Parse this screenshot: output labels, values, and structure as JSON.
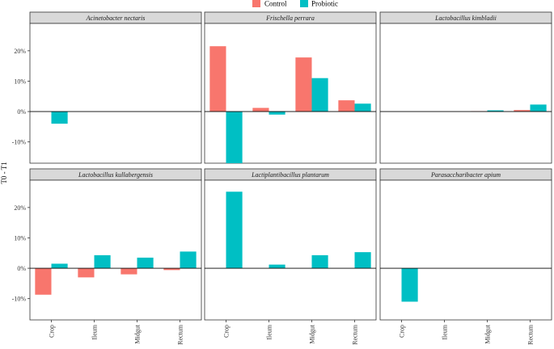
{
  "chart_data": {
    "type": "bar",
    "layout": "facet-grid",
    "ylabel": "T0 - T1",
    "xlabel": "",
    "categories": [
      "Crop",
      "Ileum",
      "Midgut",
      "Rectum"
    ],
    "y_ticks": [
      {
        "value": -0.1,
        "label": "-10%"
      },
      {
        "value": 0.0,
        "label": "0%"
      },
      {
        "value": 0.1,
        "label": "10%"
      },
      {
        "value": 0.2,
        "label": "20%"
      }
    ],
    "ylim": [
      -0.17,
      0.29
    ],
    "legend": {
      "position": "top-center",
      "items": [
        {
          "name": "Control",
          "color": "#F8766D"
        },
        {
          "name": "Probiotic",
          "color": "#00BFC4"
        }
      ]
    },
    "panels": [
      {
        "title": "Acinetobacter nectaris",
        "series": [
          {
            "name": "Control",
            "values": [
              null,
              null,
              null,
              null
            ]
          },
          {
            "name": "Probiotic",
            "values": [
              -0.04,
              null,
              null,
              null
            ]
          }
        ]
      },
      {
        "title": "Frischella perrara",
        "series": [
          {
            "name": "Control",
            "values": [
              0.215,
              0.012,
              0.178,
              0.037
            ]
          },
          {
            "name": "Probiotic",
            "values": [
              -0.17,
              -0.01,
              0.11,
              0.026
            ]
          }
        ]
      },
      {
        "title": "Lactobacillus kimbladii",
        "series": [
          {
            "name": "Control",
            "values": [
              null,
              null,
              0.001,
              0.005
            ]
          },
          {
            "name": "Probiotic",
            "values": [
              null,
              null,
              0.004,
              0.023
            ]
          }
        ]
      },
      {
        "title": "Lactobacillus kullabergensis",
        "series": [
          {
            "name": "Control",
            "values": [
              -0.087,
              -0.03,
              -0.02,
              -0.006
            ]
          },
          {
            "name": "Probiotic",
            "values": [
              0.015,
              0.043,
              0.035,
              0.055
            ]
          }
        ]
      },
      {
        "title": "Lactiplantibacillus plantarum",
        "series": [
          {
            "name": "Control",
            "values": [
              null,
              null,
              null,
              null
            ]
          },
          {
            "name": "Probiotic",
            "values": [
              0.252,
              0.012,
              0.043,
              0.053
            ]
          }
        ]
      },
      {
        "title": "Parasaccharibacter apium",
        "series": [
          {
            "name": "Control",
            "values": [
              null,
              null,
              null,
              null
            ]
          },
          {
            "name": "Probiotic",
            "values": [
              -0.11,
              null,
              null,
              null
            ]
          }
        ]
      }
    ]
  }
}
